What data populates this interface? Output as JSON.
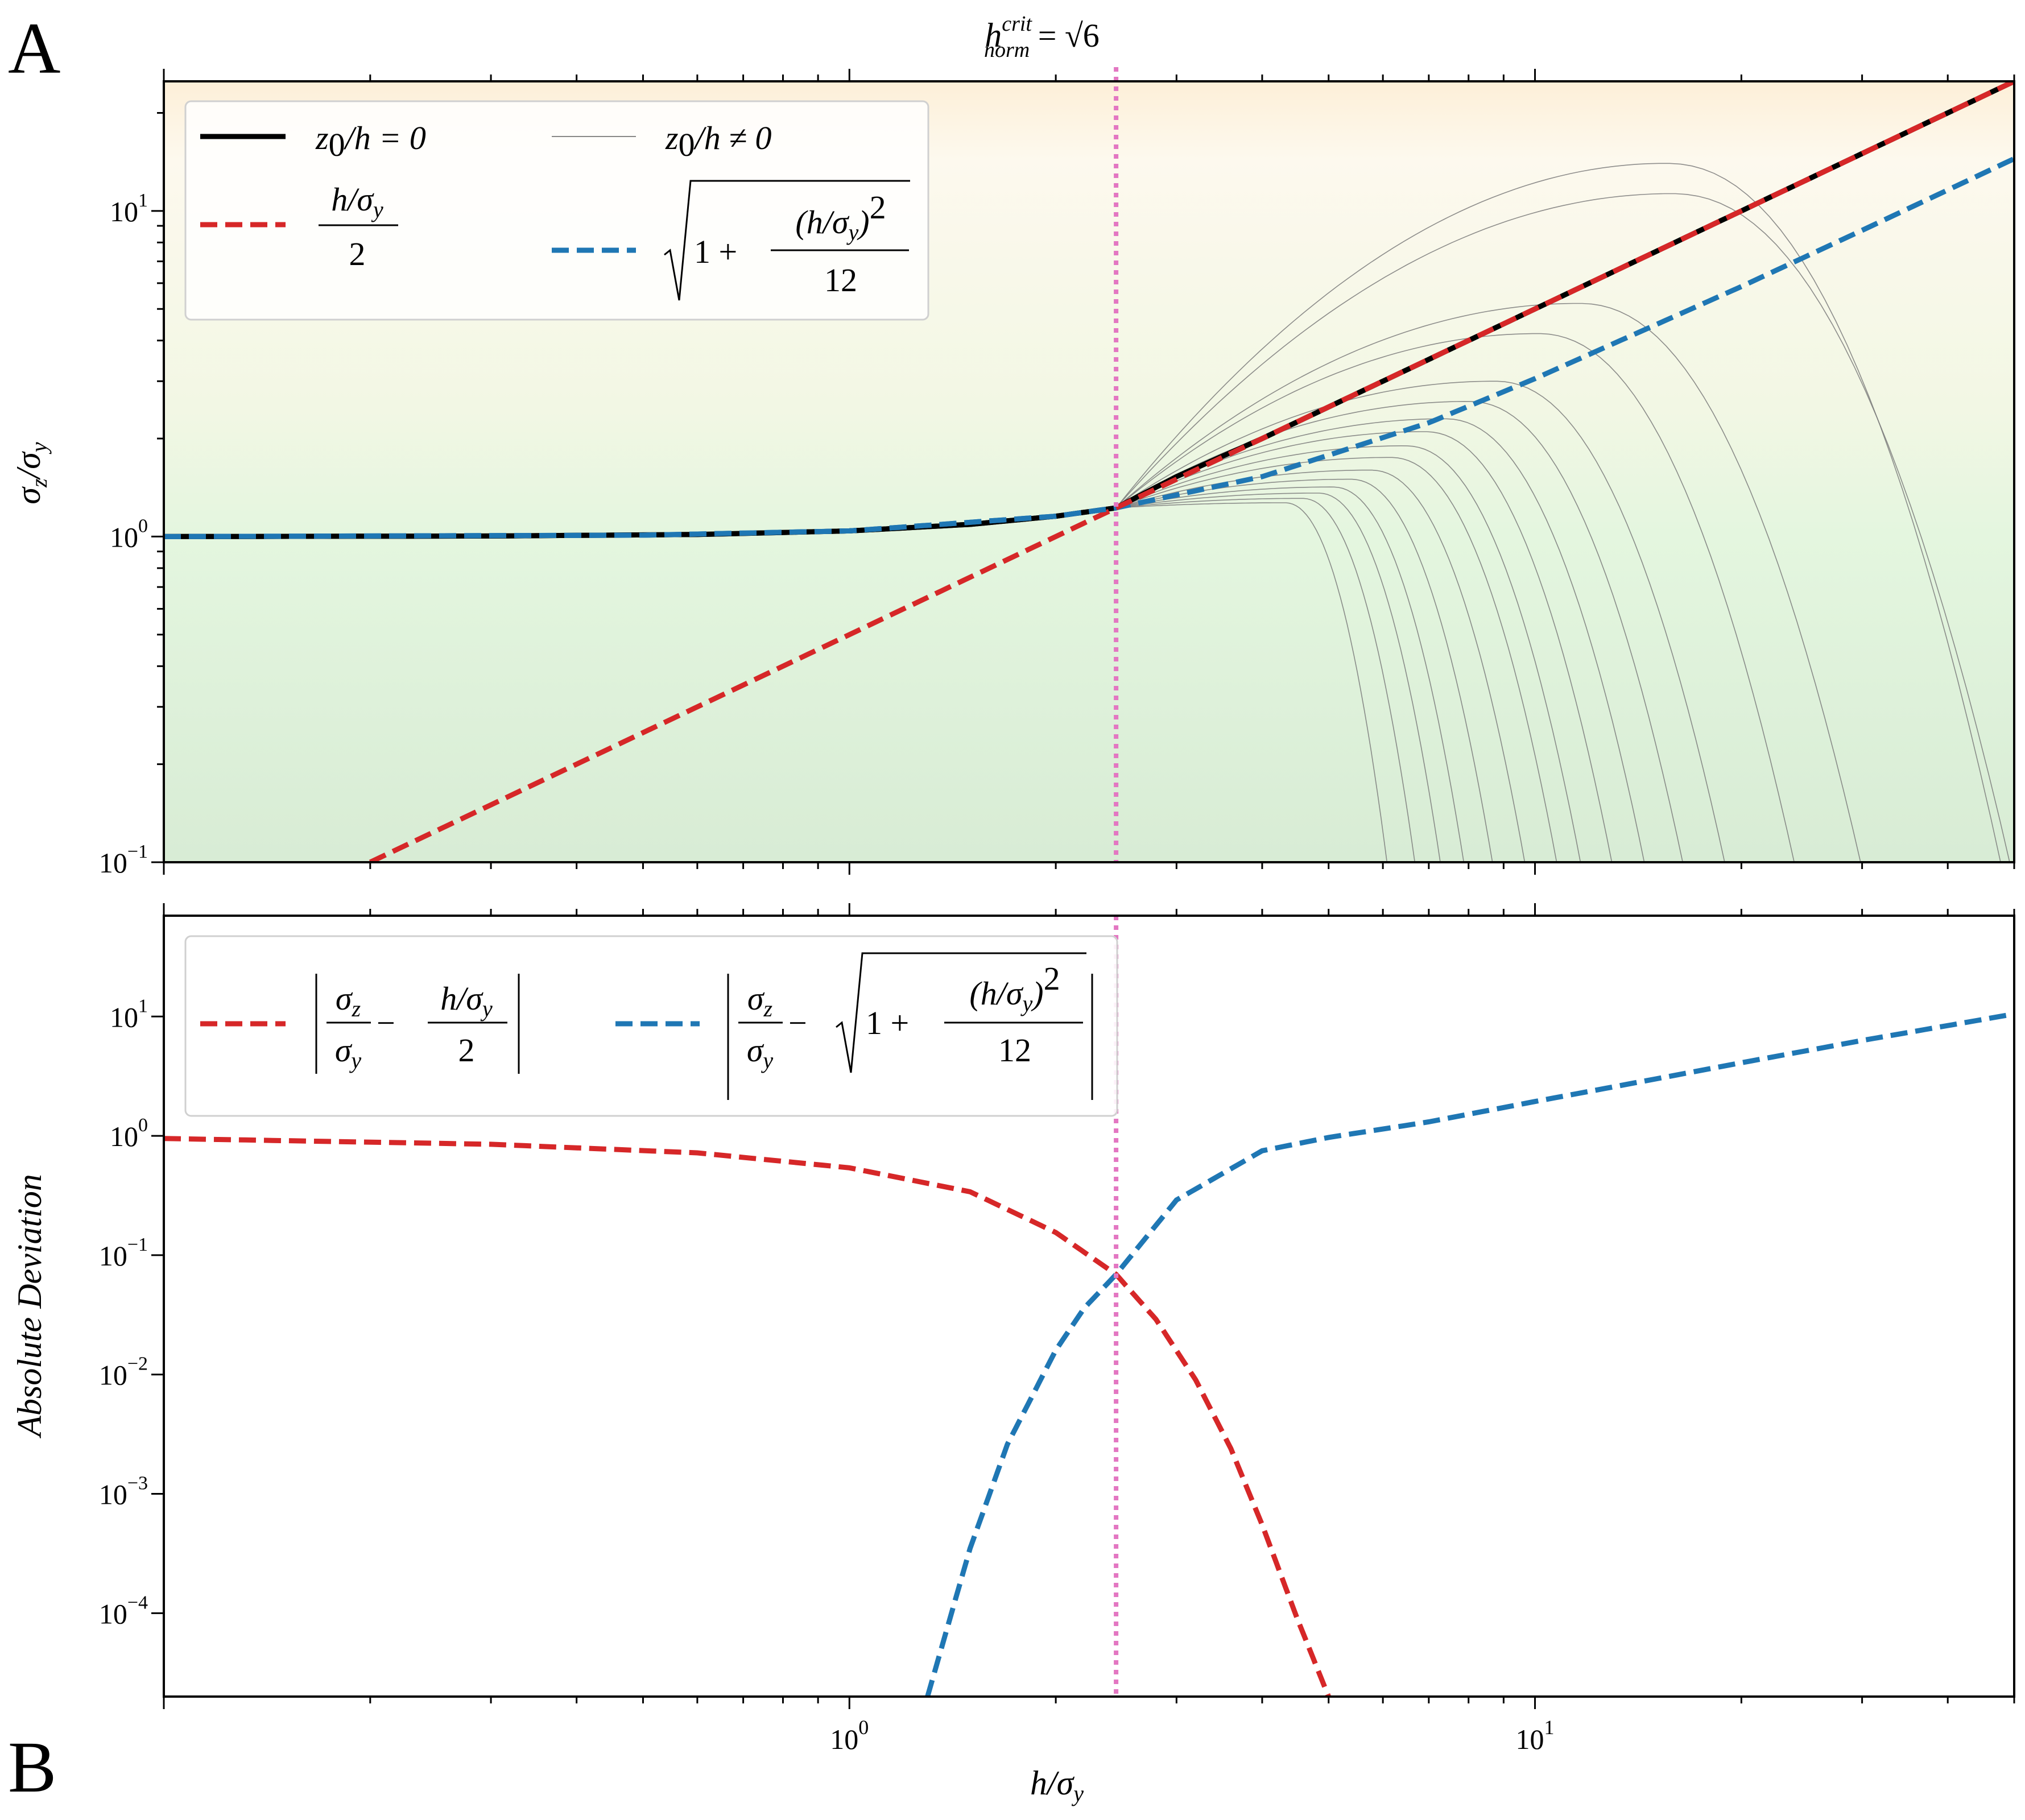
{
  "panel_labels": [
    "A",
    "B"
  ],
  "critical_label": {
    "base": "h",
    "sup": "crit",
    "sub": "norm",
    "eq": " = ",
    "value": "√6"
  },
  "chart_data": [
    {
      "type": "line",
      "panel": "A",
      "x_scale": "log",
      "y_scale": "log",
      "xlim": [
        0.1,
        50
      ],
      "ylim": [
        0.1,
        25
      ],
      "xlabel": "",
      "ylabel": "σz/σy",
      "background_gradient": "orange (top) to green (bottom)",
      "y_ticks": [
        {
          "value": 10,
          "base": "10",
          "exp": "1"
        },
        {
          "value": 1,
          "base": "10",
          "exp": "0"
        },
        {
          "value": 0.1,
          "base": "10",
          "exp": "−1"
        }
      ],
      "critical_x": 2.449,
      "series": [
        {
          "name": "z0/h = 0",
          "color": "#000000",
          "style": "solid",
          "x": [
            0.1,
            0.3,
            0.6,
            1.0,
            1.5,
            2.0,
            2.449,
            3.0,
            4.0,
            5.0,
            7.0,
            10.0,
            15.0,
            20.0,
            30.0,
            50.0
          ],
          "y": [
            1.0,
            1.004,
            1.015,
            1.041,
            1.09,
            1.155,
            1.225,
            1.528,
            2.0,
            2.5,
            3.5,
            5.0,
            7.5,
            10.0,
            15.0,
            25.0
          ]
        },
        {
          "name": "h/σy / 2",
          "color": "#d62728",
          "style": "dashed",
          "x": [
            0.2,
            1.0,
            2.449,
            10.0,
            50.0
          ],
          "y": [
            0.1,
            0.5,
            1.225,
            5.0,
            25.0
          ]
        },
        {
          "name": "sqrt(1 + (h/σy)^2 / 12)",
          "color": "#1f77b4",
          "style": "dashed",
          "x": [
            0.1,
            0.5,
            1.0,
            2.0,
            2.449,
            4.0,
            7.0,
            10.0,
            20.0,
            30.0,
            50.0
          ],
          "y": [
            1.0,
            1.01,
            1.041,
            1.155,
            1.225,
            1.528,
            2.236,
            3.055,
            5.859,
            8.718,
            14.468
          ]
        }
      ],
      "thin_curves_label": "z0/h ≠ 0",
      "thin_curves_peak_y": [
        14.0,
        11.3,
        5.2,
        4.2,
        3.0,
        2.6,
        2.3,
        2.1,
        1.9,
        1.75,
        1.6,
        1.5,
        1.42,
        1.36,
        1.31,
        1.27
      ],
      "thin_curves_end_x": [
        48.0,
        49.5,
        30.0,
        24.0,
        19.0,
        16.5,
        14.5,
        13.0,
        11.7,
        10.8,
        9.7,
        8.7,
        7.9,
        7.3,
        6.7,
        6.1
      ],
      "legend": {
        "position": "top-left",
        "entries": [
          {
            "text_main": "z",
            "text_sub": "0",
            "text_rest": "/h = 0"
          },
          {
            "text_main": "z",
            "text_sub": "0",
            "text_rest": "/h ≠ 0"
          },
          {
            "num": "h/σ",
            "num_sub": "y",
            "den": "2"
          },
          {
            "pre": "1 + ",
            "num": "(h/σ",
            "num_sub": "y",
            "num_post": ")",
            "num_sup": "2",
            "den": "12"
          }
        ]
      }
    },
    {
      "type": "line",
      "panel": "B",
      "x_scale": "log",
      "y_scale": "log",
      "xlim": [
        0.1,
        50
      ],
      "ylim": [
        2e-05,
        70
      ],
      "xlabel": "h/σy",
      "ylabel": "Absolute Deviation",
      "x_ticks": [
        {
          "value": 1,
          "base": "10",
          "exp": "0"
        },
        {
          "value": 10,
          "base": "10",
          "exp": "1"
        }
      ],
      "y_ticks": [
        {
          "value": 10,
          "base": "10",
          "exp": "1"
        },
        {
          "value": 1,
          "base": "10",
          "exp": "0"
        },
        {
          "value": 0.1,
          "base": "10",
          "exp": "−1"
        },
        {
          "value": 0.01,
          "base": "10",
          "exp": "−2"
        },
        {
          "value": 0.001,
          "base": "10",
          "exp": "−3"
        },
        {
          "value": 0.0001,
          "base": "10",
          "exp": "−4"
        }
      ],
      "critical_x": 2.449,
      "series": [
        {
          "name": "|σz/σy − (h/σy)/2|",
          "color": "#d62728",
          "style": "dashed",
          "x": [
            0.1,
            0.3,
            0.6,
            1.0,
            1.5,
            2.0,
            2.449,
            2.8,
            3.2,
            3.6,
            4.0,
            4.5,
            5.0
          ],
          "y": [
            0.95,
            0.85,
            0.72,
            0.54,
            0.34,
            0.155,
            0.069,
            0.029,
            0.009,
            0.0024,
            0.00055,
            9e-05,
            2e-05
          ]
        },
        {
          "name": "|σz/σy − sqrt(1 + (h/σy)^2/12)|",
          "color": "#1f77b4",
          "style": "dashed",
          "x": [
            1.3,
            1.5,
            1.7,
            2.0,
            2.2,
            2.449,
            3.0,
            4.0,
            5.0,
            7.0,
            10.0,
            15.0,
            20.0,
            30.0,
            50.0
          ],
          "y": [
            2e-05,
            0.00035,
            0.0026,
            0.016,
            0.036,
            0.069,
            0.29,
            0.75,
            0.97,
            1.31,
            1.94,
            3.0,
            4.1,
            6.3,
            10.5
          ]
        }
      ],
      "legend": {
        "position": "top-left",
        "entries": [
          {
            "num1": "σ",
            "num1_sub": "z",
            "den1": "σ",
            "den1_sub": "y",
            "minus": " − ",
            "num2": "h/σ",
            "num2_sub": "y",
            "den2": "2"
          },
          {
            "num1": "σ",
            "num1_sub": "z",
            "den1": "σ",
            "den1_sub": "y",
            "minus": " − ",
            "pre": "1 + ",
            "num2": "(h/σ",
            "num2_sub": "y",
            "num2_post": ")",
            "num2_sup": "2",
            "den2": "12"
          }
        ]
      }
    }
  ]
}
